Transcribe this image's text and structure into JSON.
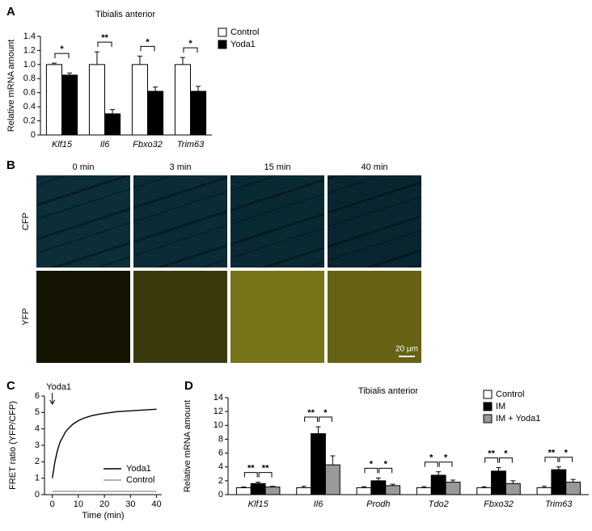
{
  "chart_data": [
    {
      "type": "bar",
      "panel_label": "A",
      "title": "Tibialis anterior",
      "y_label": "Relative mRNA amount",
      "categories": [
        "Klf15",
        "Il6",
        "Fbxo32",
        "Trim63"
      ],
      "series": [
        {
          "name": "Control",
          "color": "#ffffff",
          "values": [
            1.0,
            1.0,
            1.0,
            1.0
          ],
          "errors": [
            0.02,
            0.18,
            0.12,
            0.1
          ]
        },
        {
          "name": "Yoda1",
          "color": "#000000",
          "values": [
            0.85,
            0.3,
            0.62,
            0.62
          ],
          "errors": [
            0.03,
            0.06,
            0.06,
            0.07
          ]
        }
      ],
      "significance": [
        [
          "*"
        ],
        [
          "**"
        ],
        [
          "*"
        ],
        [
          "*"
        ]
      ],
      "ylim": [
        0,
        1.4
      ],
      "yticks": [
        0,
        0.2,
        0.4,
        0.6,
        0.8,
        {
          "value": 1,
          "label": "1.0"
        },
        1.2,
        1.4
      ],
      "legend": "outside-right"
    },
    {
      "type": "line",
      "panel_label": "C",
      "annotation": "Yoda1",
      "x_label": "Time (min)",
      "y_label": "FRET ratio (YFP/CFP)",
      "x": [
        0,
        1,
        2,
        3,
        4,
        5,
        6,
        8,
        10,
        12,
        15,
        18,
        20,
        25,
        30,
        35,
        40
      ],
      "series": [
        {
          "name": "Yoda1",
          "color": "#000000",
          "values": [
            1.0,
            2.0,
            2.7,
            3.2,
            3.5,
            3.8,
            4.0,
            4.3,
            4.5,
            4.65,
            4.8,
            4.9,
            4.95,
            5.05,
            5.1,
            5.15,
            5.2
          ]
        },
        {
          "name": "Control",
          "color": "#999999",
          "values": [
            0.2,
            0.2,
            0.2,
            0.2,
            0.2,
            0.2,
            0.2,
            0.2,
            0.2,
            0.2,
            0.2,
            0.2,
            0.2,
            0.2,
            0.2,
            0.2,
            0.2
          ]
        }
      ],
      "xlim": [
        -3,
        42
      ],
      "xticks": [
        0,
        10,
        20,
        30,
        40
      ],
      "ylim": [
        0,
        6
      ],
      "yticks": [
        0,
        1,
        2,
        3,
        4,
        5,
        6
      ],
      "legend": "lower-right"
    },
    {
      "type": "bar",
      "panel_label": "D",
      "title": "Tibialis anterior",
      "y_label": "Relative mRNA amount",
      "categories": [
        "Klf15",
        "Il6",
        "Prodh",
        "Tdo2",
        "Fbxo32",
        "Trim63"
      ],
      "series": [
        {
          "name": "Control",
          "color": "#ffffff",
          "values": [
            1,
            1,
            1,
            1,
            1,
            1
          ],
          "errors": [
            0.1,
            0.2,
            0.15,
            0.15,
            0.15,
            0.2
          ]
        },
        {
          "name": "IM",
          "color": "#000000",
          "values": [
            1.6,
            8.8,
            2.0,
            2.8,
            3.4,
            3.6
          ],
          "errors": [
            0.2,
            1.0,
            0.4,
            0.5,
            0.5,
            0.4
          ]
        },
        {
          "name": "IM + Yoda1",
          "color": "#999999",
          "values": [
            1.1,
            4.3,
            1.3,
            1.8,
            1.6,
            1.8
          ],
          "errors": [
            0.1,
            1.3,
            0.2,
            0.3,
            0.4,
            0.4
          ]
        }
      ],
      "significance": [
        [
          "**",
          "**"
        ],
        [
          "**",
          "*"
        ],
        [
          "*",
          "*"
        ],
        [
          "*",
          "*"
        ],
        [
          "**",
          "*"
        ],
        [
          "**",
          "*"
        ]
      ],
      "ylim": [
        0,
        14
      ],
      "yticks": [
        0,
        2,
        4,
        6,
        8,
        10,
        12,
        14
      ],
      "legend": "upper-right"
    }
  ],
  "image_panel": {
    "panel_label": "B",
    "columns": [
      "0 min",
      "3 min",
      "15 min",
      "40 min"
    ],
    "rows": [
      "CFP",
      "YFP"
    ],
    "scale_bar": "20 µm"
  }
}
